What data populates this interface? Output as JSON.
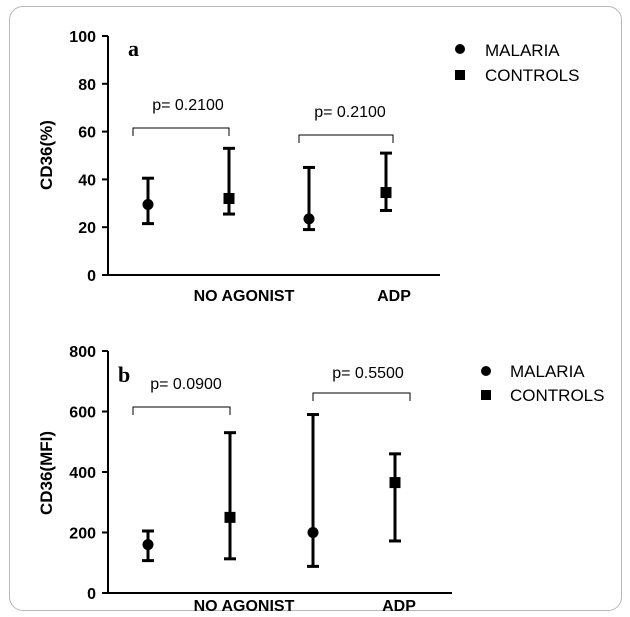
{
  "chart_data": [
    {
      "type": "scatter",
      "panel_label": "a",
      "ylabel": "CD36(%)",
      "ylim": [
        0,
        100
      ],
      "yticks": [
        "0",
        "20",
        "40",
        "60",
        "80",
        "100"
      ],
      "categories": [
        "NO AGONIST",
        "ADP"
      ],
      "series": [
        {
          "name": "MALARIA",
          "marker": "circle",
          "values": [
            29.5,
            23.5
          ],
          "err_low": [
            21.5,
            19
          ],
          "err_high": [
            40.5,
            45
          ]
        },
        {
          "name": "CONTROLS",
          "marker": "square",
          "values": [
            32,
            34.5
          ],
          "err_low": [
            25.5,
            27
          ],
          "err_high": [
            53,
            51
          ]
        }
      ],
      "pvalues": [
        "p= 0.2100",
        "p= 0.2100"
      ]
    },
    {
      "type": "scatter",
      "panel_label": "b",
      "ylabel": "CD36(MFI)",
      "ylim": [
        0,
        800
      ],
      "yticks": [
        "0",
        "200",
        "400",
        "600",
        "800"
      ],
      "categories": [
        "NO AGONIST",
        "ADP"
      ],
      "series": [
        {
          "name": "MALARIA",
          "marker": "circle",
          "values": [
            160,
            200
          ],
          "err_low": [
            107,
            88
          ],
          "err_high": [
            205,
            590
          ]
        },
        {
          "name": "CONTROLS",
          "marker": "square",
          "values": [
            250,
            365
          ],
          "err_low": [
            113,
            172
          ],
          "err_high": [
            530,
            460
          ]
        }
      ],
      "pvalues": [
        "p= 0.0900",
        "p= 0.5500"
      ]
    }
  ]
}
